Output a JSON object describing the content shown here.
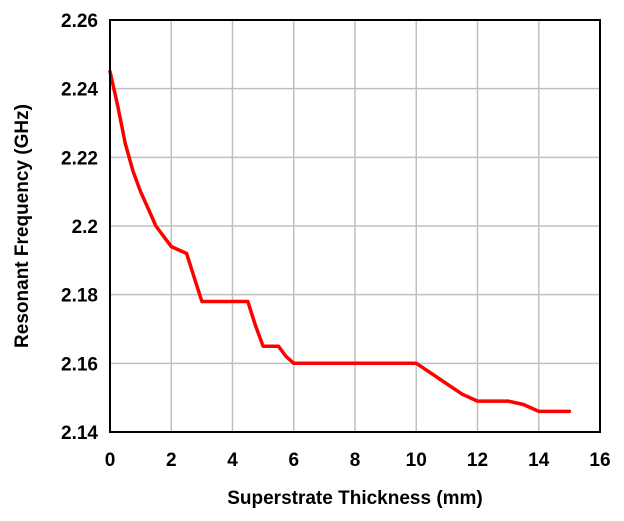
{
  "chart_data": {
    "type": "line",
    "title": "",
    "xlabel": "Superstrate Thickness   (mm)",
    "ylabel": "Resonant Frequency  (GHz)",
    "xlim": [
      0,
      16
    ],
    "ylim": [
      2.14,
      2.26
    ],
    "x_ticks": [
      0,
      2,
      4,
      6,
      8,
      10,
      12,
      14,
      16
    ],
    "y_ticks": [
      2.14,
      2.16,
      2.18,
      2.2,
      2.22,
      2.24,
      2.26
    ],
    "x_tick_labels": [
      "0",
      "2",
      "4",
      "6",
      "8",
      "10",
      "12",
      "14",
      "16"
    ],
    "y_tick_labels": [
      "2.14",
      "2.16",
      "2.18",
      "2.2",
      "2.22",
      "2.24",
      "2.26"
    ],
    "grid": true,
    "legend": "none",
    "series": [
      {
        "color": "#ff0000",
        "x": [
          0,
          0.25,
          0.5,
          0.75,
          1,
          1.25,
          1.5,
          1.75,
          2,
          2.25,
          2.5,
          2.75,
          3,
          3.5,
          4,
          4.5,
          4.75,
          5,
          5.5,
          5.75,
          6,
          7,
          8,
          9,
          10,
          10.5,
          11,
          11.5,
          12,
          12.5,
          13,
          13.5,
          14,
          14.5,
          15
        ],
        "y": [
          2.245,
          2.235,
          2.224,
          2.216,
          2.21,
          2.205,
          2.2,
          2.197,
          2.194,
          2.193,
          2.192,
          2.185,
          2.178,
          2.178,
          2.178,
          2.178,
          2.171,
          2.165,
          2.165,
          2.162,
          2.16,
          2.16,
          2.16,
          2.16,
          2.16,
          2.157,
          2.154,
          2.151,
          2.149,
          2.149,
          2.149,
          2.148,
          2.146,
          2.146,
          2.146
        ]
      }
    ]
  }
}
